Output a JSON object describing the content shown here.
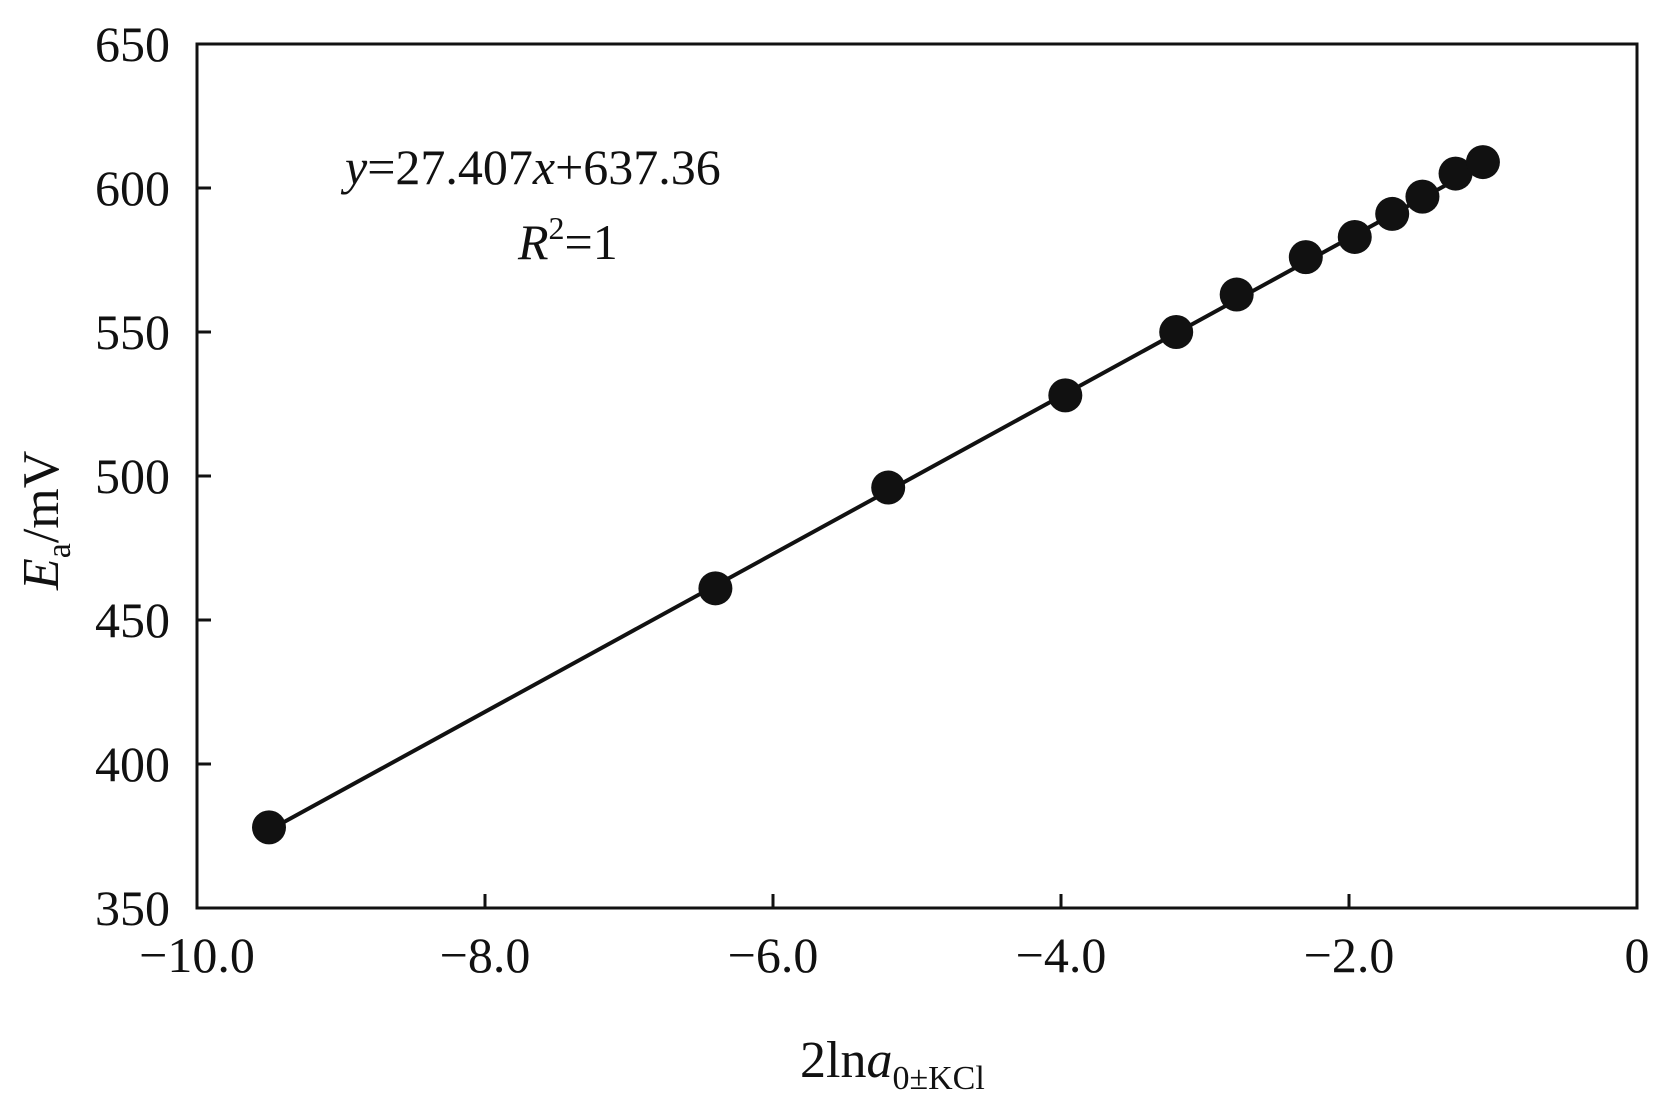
{
  "chart_data": {
    "type": "scatter",
    "title": "",
    "x": [
      -9.5,
      -6.4,
      -5.2,
      -3.97,
      -3.2,
      -2.78,
      -2.3,
      -1.96,
      -1.7,
      -1.49,
      -1.26,
      -1.07
    ],
    "y": [
      378,
      461,
      496,
      528,
      550,
      563,
      576,
      583,
      591,
      597,
      605,
      609
    ],
    "xlim": [
      -10,
      0
    ],
    "ylim": [
      350,
      650
    ],
    "x_ticks": [
      -10,
      -8,
      -6,
      -4,
      -2,
      0
    ],
    "x_tick_labels": [
      "−10.0",
      "−8.0",
      "−6.0",
      "−4.0",
      "−2.0",
      "0"
    ],
    "y_ticks": [
      350,
      400,
      450,
      500,
      550,
      600,
      650
    ],
    "y_tick_labels": [
      "350",
      "400",
      "450",
      "500",
      "550",
      "600",
      "650"
    ],
    "fit": {
      "slope": 27.407,
      "intercept": 637.36,
      "x_range": [
        -9.5,
        -1.07
      ]
    },
    "xlabel": {
      "main": "2ln",
      "var": "a",
      "sub": "0±KCl"
    },
    "ylabel": {
      "var": "E",
      "sub": "a",
      "unit": "/mV"
    },
    "annotations": {
      "equation": {
        "y_var": "y",
        "eq_part": "=27.407",
        "x_var": "x",
        "tail": "+637.36"
      },
      "r2": {
        "var": "R",
        "sup": "2",
        "tail": "=1"
      }
    },
    "grid": false,
    "legend": "none",
    "colors": {
      "marker": "#111111",
      "line": "#111111",
      "axis": "#111111"
    }
  }
}
